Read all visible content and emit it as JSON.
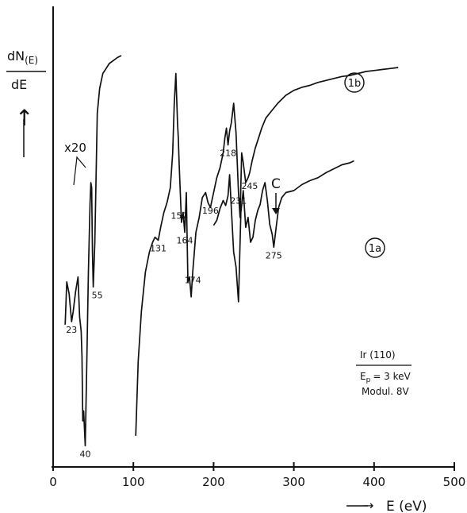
{
  "chart_data": {
    "type": "line",
    "title": "",
    "ylabel": {
      "numerator": "dN",
      "sub": "(E)",
      "denominator": "dE"
    },
    "xlabel": {
      "arrow": "→",
      "text": "E  (eV)"
    },
    "xlim": [
      0,
      500
    ],
    "xticks": [
      0,
      100,
      200,
      300,
      400,
      500
    ],
    "grid": false,
    "magnification_label": "x20",
    "series": [
      {
        "name": "1b",
        "label_circled": "1b",
        "segments": [
          {
            "x": [
              15,
              17,
              20,
              23,
              25,
              28,
              31,
              33,
              35,
              36,
              37,
              38,
              40,
              42,
              44,
              46,
              47,
              48,
              49,
              50,
              52,
              55,
              58,
              62,
              66,
              70,
              75,
              80,
              85
            ],
            "y": [
              -63,
              -20,
              -32,
              -60,
              -50,
              -30,
              -15,
              -55,
              -70,
              -95,
              -160,
              -150,
              -185,
              -100,
              -10,
              60,
              80,
              75,
              10,
              -25,
              20,
              150,
              175,
              190,
              195,
              200,
              203,
              206,
              208
            ]
          },
          {
            "x": [
              103,
              106,
              110,
              115,
              120,
              124,
              127,
              131,
              134,
              138,
              142,
              146,
              149,
              151,
              153,
              155,
              156,
              157,
              158,
              160,
              162,
              164,
              166,
              168,
              170,
              172,
              174,
              176,
              178,
              182,
              186,
              190,
              193,
              196,
              200,
              204,
              208,
              212,
              214,
              216,
              218,
              220,
              222,
              225,
              228,
              231,
              233,
              235,
              237,
              240,
              243,
              245,
              248,
              252,
              256,
              260,
              265,
              270,
              280,
              290,
              300,
              310,
              320,
              330,
              340,
              350,
              360,
              370,
              380,
              390,
              400,
              410,
              420,
              430
            ],
            "y": [
              -175,
              -100,
              -50,
              -10,
              10,
              20,
              25,
              22,
              35,
              50,
              60,
              75,
              110,
              160,
              190,
              140,
              125,
              100,
              80,
              40,
              50,
              30,
              70,
              -20,
              -15,
              -35,
              -10,
              10,
              30,
              45,
              65,
              70,
              60,
              55,
              70,
              85,
              95,
              110,
              125,
              135,
              118,
              132,
              140,
              160,
              130,
              70,
              45,
              110,
              100,
              80,
              85,
              90,
              102,
              115,
              125,
              135,
              145,
              150,
              160,
              168,
              173,
              176,
              178,
              181,
              183,
              185,
              187,
              188,
              190,
              192,
              193,
              194,
              195,
              196
            ]
          }
        ]
      },
      {
        "name": "1a",
        "label_circled": "1a",
        "segments": [
          {
            "x": [
              200,
              204,
              208,
              212,
              215,
              218,
              220,
              222,
              225,
              228,
              231,
              234,
              237,
              240,
              243,
              246,
              249,
              252,
              255,
              258,
              261,
              264,
              267,
              270,
              273,
              275,
              278,
              281,
              285,
              290,
              300,
              310,
              320,
              330,
              340,
              350,
              360,
              370,
              375
            ],
            "y": [
              37,
              42,
              54,
              62,
              57,
              67,
              88,
              55,
              10,
              -5,
              -40,
              50,
              72,
              35,
              45,
              20,
              25,
              42,
              52,
              58,
              72,
              80,
              62,
              38,
              28,
              15,
              35,
              55,
              65,
              70,
              72,
              78,
              82,
              85,
              90,
              94,
              98,
              100,
              102
            ]
          }
        ]
      }
    ],
    "peak_labels": [
      {
        "text": "23",
        "x": 23,
        "y": -60
      },
      {
        "text": "40",
        "x": 40,
        "y": -185
      },
      {
        "text": "55",
        "x": 55,
        "y": -25
      },
      {
        "text": "131",
        "x": 131,
        "y": 22
      },
      {
        "text": "157",
        "x": 157,
        "y": 55
      },
      {
        "text": "164",
        "x": 164,
        "y": 30
      },
      {
        "text": "174",
        "x": 174,
        "y": -10
      },
      {
        "text": "196",
        "x": 196,
        "y": 60
      },
      {
        "text": "218",
        "x": 218,
        "y": 118
      },
      {
        "text": "231",
        "x": 231,
        "y": 70
      },
      {
        "text": "245",
        "x": 245,
        "y": 85
      },
      {
        "text": "275",
        "x": 275,
        "y": 15
      }
    ],
    "annotation": {
      "text": "C",
      "arrow": "↓",
      "x": 275
    },
    "info_box": {
      "line1": "Ir (110)",
      "line2_main": "E",
      "line2_sub": "p",
      "line2_rest": "= 3 keV",
      "line3": "Modul. 8V"
    },
    "ylabel_arrow": "↑",
    "colors": {
      "line": "#111111",
      "axis": "#111111",
      "background": "#ffffff"
    }
  }
}
